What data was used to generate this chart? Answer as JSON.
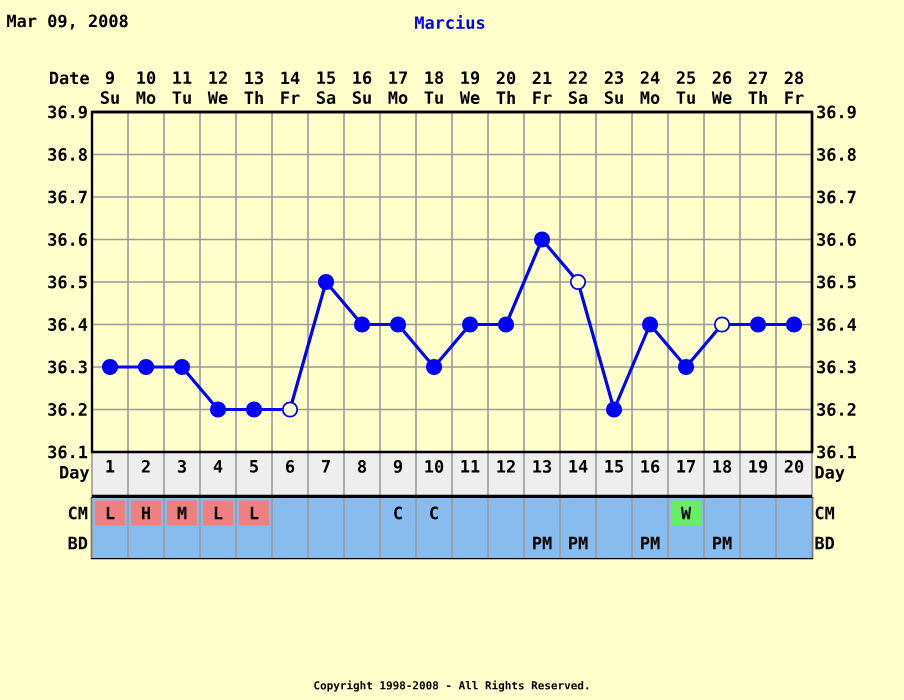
{
  "chart_data": [
    {
      "type": "line",
      "title": "Marcius",
      "subtitle": "Mar 09, 2008",
      "xlabel": "Day",
      "x2label": "Date",
      "categories": [
        "1",
        "2",
        "3",
        "4",
        "5",
        "6",
        "7",
        "8",
        "9",
        "10",
        "11",
        "12",
        "13",
        "14",
        "15",
        "16",
        "17",
        "18",
        "19",
        "20"
      ],
      "series": [
        {
          "color": "#0000ff",
          "values": [
            36.3,
            36.3,
            36.3,
            36.2,
            36.2,
            36.2,
            36.5,
            36.4,
            36.4,
            36.3,
            36.4,
            36.4,
            36.6,
            36.5,
            36.2,
            36.4,
            36.3,
            36.4,
            36.4,
            36.4
          ],
          "colors": [
            "#0000ff",
            "#0000ff",
            "#0000ff",
            "#0000ff",
            "#0000ff",
            "#ffffcc",
            "#0000ff",
            "#0000ff",
            "#0000ff",
            "#0000ff",
            "#0000ff",
            "#0000ff",
            "#0000ff",
            "#ffffcc",
            "#0000ff",
            "#0000ff",
            "#0000ff",
            "#ffffcc",
            "#0000ff",
            "#0000ff"
          ]
        }
      ],
      "ylim": [
        36.1,
        36.9
      ],
      "yticks": [
        36.1,
        36.2,
        36.3,
        36.4,
        36.5,
        36.6,
        36.7,
        36.8,
        36.9
      ],
      "y2lim": [
        36.1,
        36.9
      ],
      "y2ticks": [
        36.1,
        36.2,
        36.3,
        36.4,
        36.5,
        36.6,
        36.7,
        36.8,
        36.9
      ],
      "x2lim": [
        8.5,
        28.5
      ],
      "x2ticks": [
        {
          "value": 9,
          "label": "9 Su"
        },
        {
          "value": 10,
          "label": "10 Mo"
        },
        {
          "value": 11,
          "label": "11 Tu"
        },
        {
          "value": 12,
          "label": "12 We"
        },
        {
          "value": 13,
          "label": "13 Th"
        },
        {
          "value": 14,
          "label": "14 Fr"
        },
        {
          "value": 15,
          "label": "15 Sa"
        },
        {
          "value": 16,
          "label": "16 Su"
        },
        {
          "value": 17,
          "label": "17 Mo"
        },
        {
          "value": 18,
          "label": "18 Tu"
        },
        {
          "value": 19,
          "label": "19 We"
        },
        {
          "value": 20,
          "label": "20 Th"
        },
        {
          "value": 21,
          "label": "21 Fr"
        },
        {
          "value": 22,
          "label": "22 Sa"
        },
        {
          "value": 23,
          "label": "23 Su"
        },
        {
          "value": 24,
          "label": "24 Mo"
        },
        {
          "value": 25,
          "label": "25 Tu"
        },
        {
          "value": 26,
          "label": "26 We"
        },
        {
          "value": 27,
          "label": "27 Th"
        },
        {
          "value": 28,
          "label": "28 Fr"
        }
      ],
      "grid": true,
      "marker": "circle",
      "line_style": "solid",
      "annotations": [
        "Copyright 1998-2008 - All Rights Reserved."
      ]
    },
    {
      "type": "heatmap",
      "categories": [
        null,
        null,
        null,
        null,
        null,
        null,
        null,
        null,
        null,
        null,
        null,
        null,
        null,
        null,
        null,
        null,
        null,
        null,
        null,
        null
      ],
      "y_categories": [
        "CM",
        "BD"
      ],
      "y2_categories": [
        "CM",
        "BD"
      ],
      "cells": [
        [
          null,
          null,
          null,
          null,
          null,
          null,
          null,
          null,
          null,
          null,
          null,
          null,
          null,
          null,
          null,
          null,
          null,
          null,
          null,
          null
        ],
        [
          null,
          null,
          null,
          null,
          null,
          null,
          null,
          null,
          null,
          null,
          null,
          null,
          null,
          null,
          null,
          null,
          null,
          null,
          null,
          null
        ]
      ],
      "cell_labels": [
        [
          "L",
          "H",
          "M",
          "L",
          "L",
          null,
          null,
          null,
          "C",
          "C",
          null,
          null,
          null,
          null,
          null,
          null,
          "W",
          null,
          null,
          null
        ],
        [
          null,
          null,
          null,
          null,
          null,
          null,
          null,
          null,
          null,
          null,
          null,
          null,
          "PM",
          "PM",
          null,
          "PM",
          null,
          "PM",
          null,
          null
        ]
      ],
      "colors": [
        [
          "#f08080",
          "#f08080",
          "#f08080",
          "#f08080",
          "#f08080",
          "#88bbee",
          "#88bbee",
          "#88bbee",
          "#88bbee",
          "#88bbee",
          "#88bbee",
          "#88bbee",
          "#88bbee",
          "#88bbee",
          "#88bbee",
          "#88bbee",
          "#66ee66",
          "#88bbee",
          "#88bbee",
          "#88bbee"
        ],
        [
          "#88bbee",
          "#88bbee",
          "#88bbee",
          "#88bbee",
          "#88bbee",
          "#88bbee",
          "#88bbee",
          "#88bbee",
          "#88bbee",
          "#88bbee",
          "#88bbee",
          "#88bbee",
          "#88bbee",
          "#88bbee",
          "#88bbee",
          "#88bbee",
          "#88bbee",
          "#88bbee",
          "#88bbee",
          "#88bbee"
        ]
      ]
    }
  ]
}
